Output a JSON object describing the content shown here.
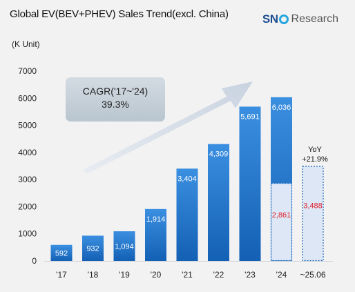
{
  "title": "Global EV(BEV+PHEV) Sales Trend(excl. China)",
  "unit": "(K Unit)",
  "logo": {
    "brand": "SN",
    "suffix": "Research"
  },
  "callout": {
    "line1": "CAGR('17~'24)",
    "line2": "39.3%"
  },
  "yoy": {
    "line1": "YoY",
    "line2": "+21.9%"
  },
  "colors": {
    "bar_top": "#3b8fe0",
    "bar_bottom": "#1360b4",
    "forecast_fill": "#dde7f6",
    "forecast_border": "#1a67c0",
    "forecast_text": "#e0202a",
    "axis_text": "#222222"
  },
  "chart_data": {
    "type": "bar",
    "categories": [
      "'17",
      "'18",
      "'19",
      "'20",
      "'21",
      "'22",
      "'23",
      "'24",
      "~25.06"
    ],
    "values": [
      592,
      932,
      1094,
      1914,
      3404,
      4309,
      5691,
      6036,
      null
    ],
    "partial": [
      null,
      null,
      null,
      null,
      null,
      null,
      null,
      2861,
      3488
    ],
    "labels": [
      "592",
      "932",
      "1,094",
      "1,914",
      "3,404",
      "4,309",
      "5,691",
      "6,036",
      null
    ],
    "partial_labels": [
      null,
      null,
      null,
      null,
      null,
      null,
      null,
      "2,861",
      "3,488"
    ],
    "ylim": [
      0,
      7000
    ],
    "yticks": [
      0,
      1000,
      2000,
      3000,
      4000,
      5000,
      6000,
      7000
    ],
    "ytick_labels": [
      "0",
      "1000",
      "2000",
      "3000",
      "4000",
      "5000",
      "6000",
      "7000"
    ],
    "grid": false
  }
}
